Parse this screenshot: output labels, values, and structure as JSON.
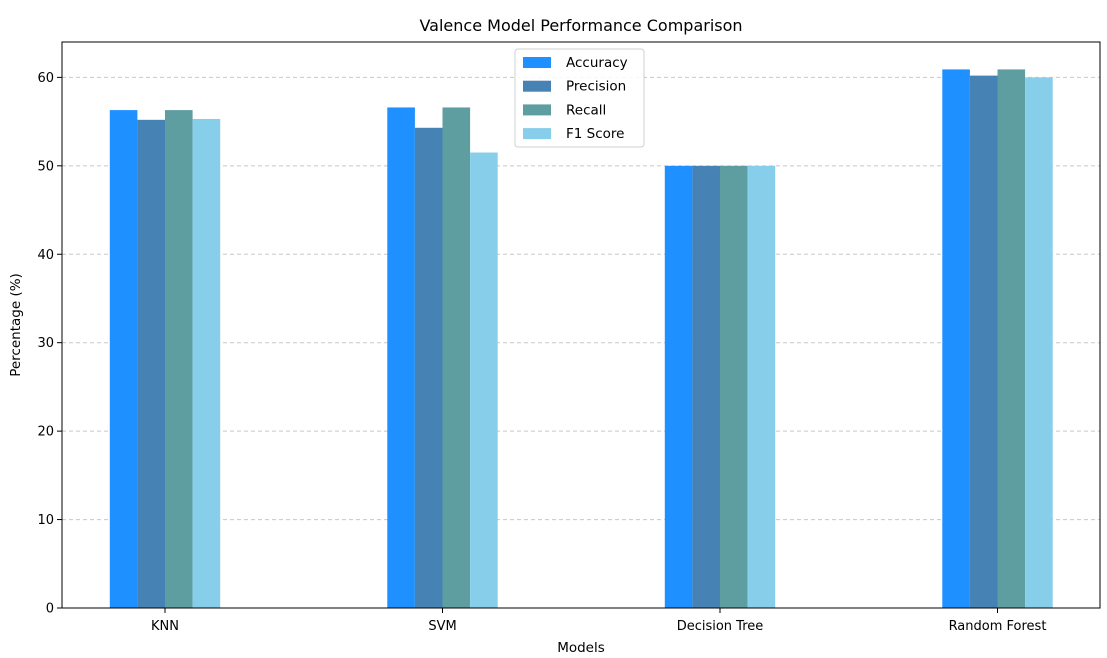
{
  "chart_data": {
    "type": "bar",
    "title": "Valence Model Performance Comparison",
    "xlabel": "Models",
    "ylabel": "Percentage (%)",
    "categories": [
      "KNN",
      "SVM",
      "Decision Tree",
      "Random Forest"
    ],
    "ylim": [
      0,
      64
    ],
    "yticks": [
      0,
      10,
      20,
      30,
      40,
      50,
      60
    ],
    "grid": "y, dashed",
    "legend_position": "top-center",
    "series": [
      {
        "name": "Accuracy",
        "color": "#1E90FF",
        "values": [
          56.3,
          56.6,
          50.0,
          60.9
        ]
      },
      {
        "name": "Precision",
        "color": "#4682B4",
        "values": [
          55.2,
          54.3,
          50.0,
          60.2
        ]
      },
      {
        "name": "Recall",
        "color": "#5F9EA0",
        "values": [
          56.3,
          56.6,
          50.0,
          60.9
        ]
      },
      {
        "name": "F1 Score",
        "color": "#87CEEB",
        "values": [
          55.3,
          51.5,
          50.0,
          60.0
        ]
      }
    ]
  }
}
